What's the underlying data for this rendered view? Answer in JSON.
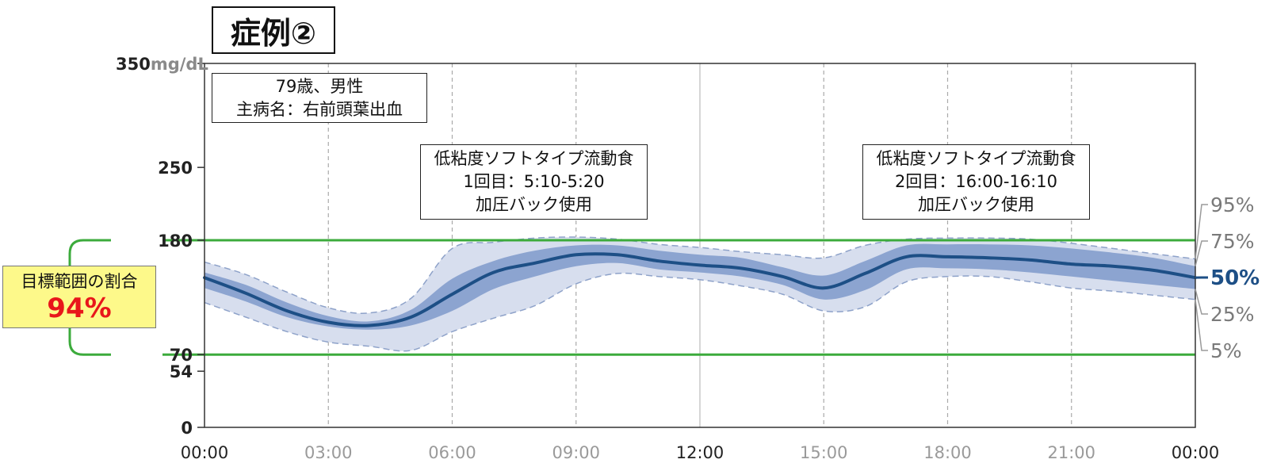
{
  "case_title": "症例②",
  "patient": {
    "line1": "79歳、男性",
    "line2": "主病名：右前頭葉出血"
  },
  "meal_annotations": [
    {
      "line1": "低粘度ソフトタイプ流動食",
      "line2": "1回目：5:10-5:20",
      "line3": "加圧バック使用"
    },
    {
      "line1": "低粘度ソフトタイプ流動食",
      "line2": "2回目：16:00-16:10",
      "line3": "加圧バック使用"
    }
  ],
  "time_in_range": {
    "label": "目標範囲の割合",
    "value": "94%"
  },
  "colors": {
    "median": "#1d4f86",
    "iqr_band": "#8ca4d0",
    "outer_band": "#d7deee",
    "outer_line": "#8ea2c9",
    "target_range": "#3cab3c",
    "grid": "#aaaaaa",
    "tir_box": "#fdf98a",
    "tir_value": "#e8171b"
  },
  "chart_data": {
    "type": "area",
    "title": "",
    "y_unit": "mg/dL",
    "ylim": [
      0,
      350
    ],
    "xlim": [
      0,
      24
    ],
    "y_ticks": [
      {
        "value": 350,
        "label": "350"
      },
      {
        "value": 250,
        "label": "250"
      },
      {
        "value": 180,
        "label": "180"
      },
      {
        "value": 70,
        "label": "70"
      },
      {
        "value": 54,
        "label": "54"
      },
      {
        "value": 0,
        "label": "0"
      }
    ],
    "x_ticks": [
      {
        "value": 0,
        "label": "00:00",
        "bold": true
      },
      {
        "value": 3,
        "label": "03:00",
        "bold": false
      },
      {
        "value": 6,
        "label": "06:00",
        "bold": false
      },
      {
        "value": 9,
        "label": "09:00",
        "bold": false
      },
      {
        "value": 12,
        "label": "12:00",
        "bold": true
      },
      {
        "value": 15,
        "label": "15:00",
        "bold": false
      },
      {
        "value": 18,
        "label": "18:00",
        "bold": false
      },
      {
        "value": 21,
        "label": "21:00",
        "bold": false
      },
      {
        "value": 24,
        "label": "00:00",
        "bold": true
      }
    ],
    "target_range": [
      70,
      180
    ],
    "percentile_labels": [
      "95%",
      "75%",
      "50%",
      "25%",
      "5%"
    ],
    "x": [
      0,
      1,
      2,
      3,
      4,
      5,
      6,
      7,
      8,
      9,
      10,
      11,
      12,
      13,
      14,
      15,
      16,
      17,
      18,
      19,
      20,
      21,
      22,
      23,
      24
    ],
    "series": [
      {
        "name": "95%",
        "values": [
          159,
          147,
          130,
          115,
          110,
          124,
          172,
          178,
          182,
          183,
          181,
          176,
          173,
          169,
          166,
          163,
          175,
          181,
          182,
          182,
          181,
          177,
          172,
          167,
          162
        ]
      },
      {
        "name": "75%",
        "values": [
          149,
          137,
          120,
          107,
          102,
          113,
          143,
          160,
          170,
          175,
          175,
          170,
          166,
          163,
          154,
          146,
          160,
          175,
          176,
          176,
          175,
          172,
          168,
          163,
          155
        ]
      },
      {
        "name": "50%",
        "values": [
          144,
          129,
          112,
          101,
          98,
          106,
          128,
          149,
          158,
          166,
          166,
          160,
          156,
          153,
          145,
          134,
          148,
          164,
          164,
          163,
          161,
          157,
          155,
          151,
          144
        ]
      },
      {
        "name": "25%",
        "values": [
          134,
          121,
          106,
          97,
          94,
          98,
          112,
          133,
          145,
          155,
          158,
          152,
          149,
          145,
          137,
          123,
          132,
          152,
          153,
          152,
          149,
          145,
          141,
          137,
          133
        ]
      },
      {
        "name": "5%",
        "values": [
          120,
          106,
          92,
          82,
          78,
          74,
          92,
          105,
          117,
          138,
          148,
          145,
          142,
          136,
          128,
          112,
          116,
          140,
          145,
          145,
          140,
          134,
          131,
          127,
          123
        ]
      }
    ]
  }
}
